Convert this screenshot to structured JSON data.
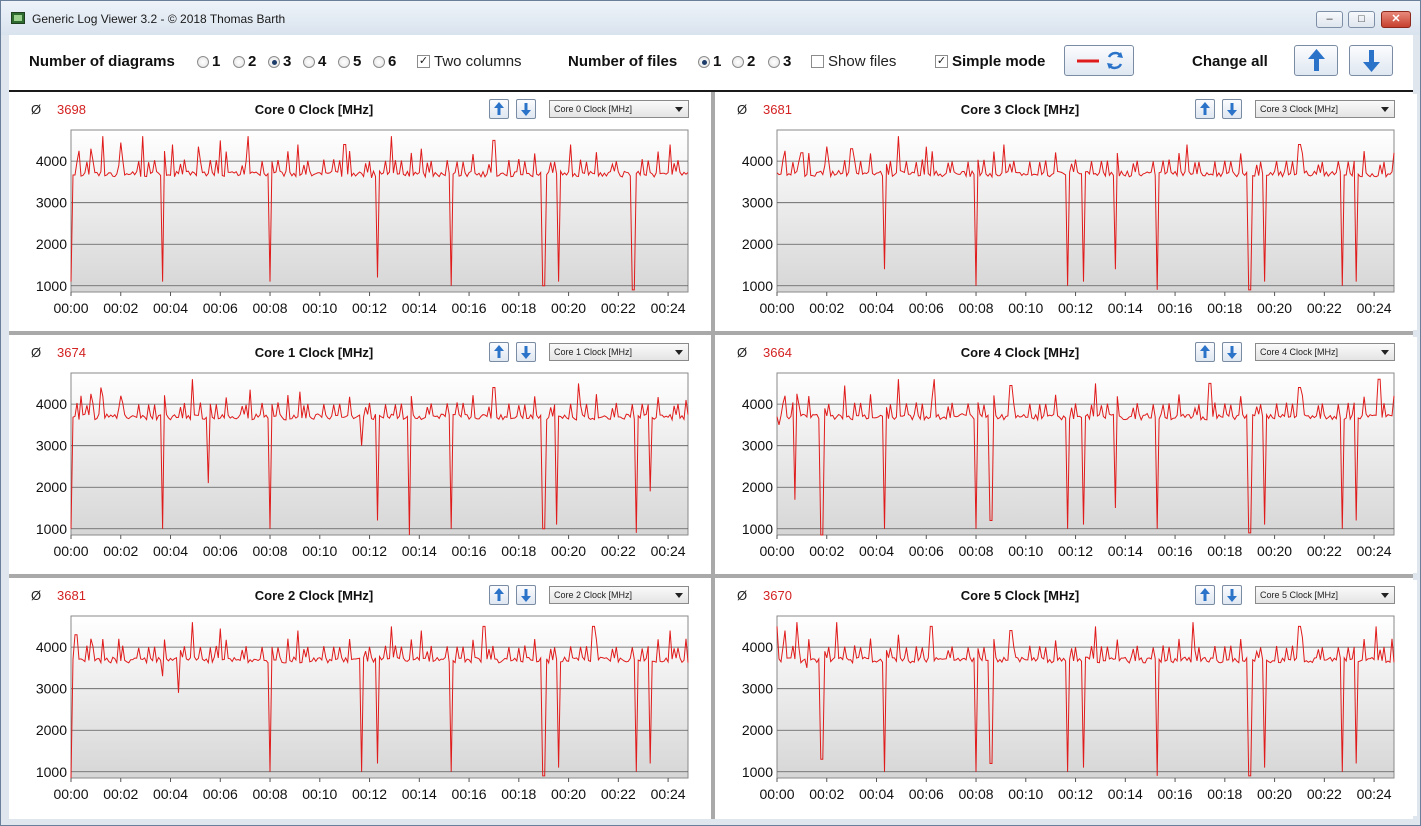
{
  "window": {
    "title": "Generic Log Viewer 3.2 - © 2018 Thomas Barth"
  },
  "toolbar": {
    "diagrams_label": "Number of diagrams",
    "diagram_options": [
      "1",
      "2",
      "3",
      "4",
      "5",
      "6"
    ],
    "diagrams_selected": "3",
    "two_columns_label": "Two columns",
    "two_columns_checked": true,
    "files_label": "Number of files",
    "file_options": [
      "1",
      "2",
      "3"
    ],
    "files_selected": "1",
    "show_files_label": "Show files",
    "show_files_checked": false,
    "simple_mode_label": "Simple mode",
    "simple_mode_checked": true,
    "change_all_label": "Change all",
    "line_color": "#e01b1b"
  },
  "panels": [
    {
      "avg_symbol": "Ø",
      "avg": "3698",
      "title": "Core 0 Clock [MHz]",
      "select": "Core 0 Clock [MHz]"
    },
    {
      "avg_symbol": "Ø",
      "avg": "3681",
      "title": "Core 3 Clock [MHz]",
      "select": "Core 3 Clock [MHz]"
    },
    {
      "avg_symbol": "Ø",
      "avg": "3674",
      "title": "Core 1 Clock [MHz]",
      "select": "Core 1 Clock [MHz]"
    },
    {
      "avg_symbol": "Ø",
      "avg": "3664",
      "title": "Core 4 Clock [MHz]",
      "select": "Core 4 Clock [MHz]"
    },
    {
      "avg_symbol": "Ø",
      "avg": "3681",
      "title": "Core 2 Clock [MHz]",
      "select": "Core 2 Clock [MHz]"
    },
    {
      "avg_symbol": "Ø",
      "avg": "3670",
      "title": "Core 5 Clock [MHz]",
      "select": "Core 5 Clock [MHz]"
    }
  ],
  "chart_data": [
    {
      "type": "line",
      "title": "Core 0 Clock [MHz]",
      "x_ticks": [
        "00:00",
        "00:02",
        "00:04",
        "00:06",
        "00:08",
        "00:10",
        "00:12",
        "00:14",
        "00:16",
        "00:18",
        "00:20",
        "00:22",
        "00:24"
      ],
      "y_ticks": [
        1000,
        2000,
        3000,
        4000
      ],
      "ylim": [
        850,
        4750
      ],
      "xlim_minutes": [
        0,
        24.8
      ],
      "baseline": 3690,
      "spikes": [
        [
          0.0,
          1100
        ],
        [
          0.3,
          4250
        ],
        [
          0.8,
          4300
        ],
        [
          1.3,
          4600
        ],
        [
          2.0,
          4450
        ],
        [
          2.9,
          4600
        ],
        [
          3.7,
          1100
        ],
        [
          4.1,
          4400
        ],
        [
          5.1,
          4350
        ],
        [
          6.0,
          4500
        ],
        [
          7.1,
          4600
        ],
        [
          8.0,
          1100
        ],
        [
          9.1,
          4400
        ],
        [
          11.0,
          4400
        ],
        [
          12.1,
          3600
        ],
        [
          12.3,
          1200
        ],
        [
          12.9,
          4600
        ],
        [
          14.1,
          4300
        ],
        [
          15.3,
          1000
        ],
        [
          17.0,
          4500
        ],
        [
          19.0,
          1000
        ],
        [
          19.6,
          1100
        ],
        [
          20.1,
          4400
        ],
        [
          22.6,
          900
        ],
        [
          24.1,
          4400
        ]
      ],
      "color": "#e01b1b"
    },
    {
      "type": "line",
      "title": "Core 3 Clock [MHz]",
      "x_ticks": [
        "00:00",
        "00:02",
        "00:04",
        "00:06",
        "00:08",
        "00:10",
        "00:12",
        "00:14",
        "00:16",
        "00:18",
        "00:20",
        "00:22",
        "00:24"
      ],
      "y_ticks": [
        1000,
        2000,
        3000,
        4000
      ],
      "ylim": [
        850,
        4750
      ],
      "xlim_minutes": [
        0,
        24.8
      ],
      "baseline": 3690,
      "spikes": [
        [
          0.3,
          4250
        ],
        [
          1.0,
          4200
        ],
        [
          2.0,
          4350
        ],
        [
          3.0,
          4300
        ],
        [
          4.3,
          1400
        ],
        [
          4.9,
          4600
        ],
        [
          6.0,
          4350
        ],
        [
          8.0,
          1000
        ],
        [
          9.1,
          4400
        ],
        [
          11.7,
          1000
        ],
        [
          12.3,
          1100
        ],
        [
          13.6,
          1400
        ],
        [
          15.3,
          900
        ],
        [
          16.5,
          4400
        ],
        [
          19.0,
          900
        ],
        [
          19.6,
          1100
        ],
        [
          21.0,
          4400
        ],
        [
          22.7,
          1000
        ],
        [
          23.3,
          1100
        ],
        [
          24.8,
          4200
        ]
      ],
      "color": "#e01b1b"
    },
    {
      "type": "line",
      "title": "Core 1 Clock [MHz]",
      "x_ticks": [
        "00:00",
        "00:02",
        "00:04",
        "00:06",
        "00:08",
        "00:10",
        "00:12",
        "00:14",
        "00:16",
        "00:18",
        "00:20",
        "00:22",
        "00:24"
      ],
      "y_ticks": [
        1000,
        2000,
        3000,
        4000
      ],
      "ylim": [
        850,
        4750
      ],
      "xlim_minutes": [
        0,
        24.8
      ],
      "baseline": 3690,
      "spikes": [
        [
          0.0,
          1000
        ],
        [
          0.4,
          4200
        ],
        [
          0.8,
          4250
        ],
        [
          1.2,
          4400
        ],
        [
          2.0,
          4200
        ],
        [
          3.7,
          1000
        ],
        [
          4.9,
          4600
        ],
        [
          5.5,
          2100
        ],
        [
          7.2,
          4350
        ],
        [
          8.0,
          1000
        ],
        [
          9.2,
          4300
        ],
        [
          11.7,
          3000
        ],
        [
          12.3,
          1200
        ],
        [
          13.6,
          800
        ],
        [
          15.3,
          1000
        ],
        [
          17.0,
          4400
        ],
        [
          19.0,
          1000
        ],
        [
          19.5,
          1100
        ],
        [
          20.4,
          4500
        ],
        [
          22.7,
          900
        ],
        [
          23.3,
          1900
        ],
        [
          24.7,
          4100
        ]
      ],
      "color": "#e01b1b"
    },
    {
      "type": "line",
      "title": "Core 4 Clock [MHz]",
      "x_ticks": [
        "00:00",
        "00:02",
        "00:04",
        "00:06",
        "00:08",
        "00:10",
        "00:12",
        "00:14",
        "00:16",
        "00:18",
        "00:20",
        "00:22",
        "00:24"
      ],
      "y_ticks": [
        1000,
        2000,
        3000,
        4000
      ],
      "ylim": [
        850,
        4750
      ],
      "xlim_minutes": [
        0,
        24.8
      ],
      "baseline": 3690,
      "spikes": [
        [
          0.1,
          3500
        ],
        [
          0.3,
          4200
        ],
        [
          0.8,
          4250
        ],
        [
          0.7,
          1700
        ],
        [
          1.8,
          800
        ],
        [
          2.7,
          4450
        ],
        [
          4.3,
          1000
        ],
        [
          4.9,
          4600
        ],
        [
          6.3,
          4600
        ],
        [
          8.0,
          1000
        ],
        [
          8.6,
          1200
        ],
        [
          9.4,
          4450
        ],
        [
          11.7,
          1000
        ],
        [
          12.3,
          1100
        ],
        [
          12.8,
          4500
        ],
        [
          13.6,
          1500
        ],
        [
          15.3,
          1000
        ],
        [
          17.4,
          4500
        ],
        [
          19.0,
          900
        ],
        [
          19.6,
          1100
        ],
        [
          21.0,
          4400
        ],
        [
          22.7,
          1000
        ],
        [
          23.3,
          1200
        ],
        [
          24.2,
          4600
        ],
        [
          24.8,
          4200
        ]
      ],
      "color": "#e01b1b"
    },
    {
      "type": "line",
      "title": "Core 2 Clock [MHz]",
      "x_ticks": [
        "00:00",
        "00:02",
        "00:04",
        "00:06",
        "00:08",
        "00:10",
        "00:12",
        "00:14",
        "00:16",
        "00:18",
        "00:20",
        "00:22",
        "00:24"
      ],
      "y_ticks": [
        1000,
        2000,
        3000,
        4000
      ],
      "ylim": [
        850,
        4750
      ],
      "xlim_minutes": [
        0,
        24.8
      ],
      "baseline": 3690,
      "spikes": [
        [
          0.0,
          800
        ],
        [
          0.2,
          4300
        ],
        [
          0.8,
          4200
        ],
        [
          1.9,
          4200
        ],
        [
          3.7,
          3300
        ],
        [
          4.3,
          2900
        ],
        [
          4.9,
          4600
        ],
        [
          6.0,
          4450
        ],
        [
          8.0,
          1000
        ],
        [
          9.1,
          4400
        ],
        [
          11.7,
          1000
        ],
        [
          12.3,
          1200
        ],
        [
          12.9,
          4500
        ],
        [
          14.1,
          4400
        ],
        [
          15.3,
          1000
        ],
        [
          16.6,
          4500
        ],
        [
          19.0,
          900
        ],
        [
          19.6,
          1100
        ],
        [
          21.0,
          4500
        ],
        [
          22.7,
          1000
        ],
        [
          23.3,
          1200
        ],
        [
          24.1,
          4400
        ],
        [
          24.7,
          4200
        ]
      ],
      "color": "#e01b1b"
    },
    {
      "type": "line",
      "title": "Core 5 Clock [MHz]",
      "x_ticks": [
        "00:00",
        "00:02",
        "00:04",
        "00:06",
        "00:08",
        "00:10",
        "00:12",
        "00:14",
        "00:16",
        "00:18",
        "00:20",
        "00:22",
        "00:24"
      ],
      "y_ticks": [
        1000,
        2000,
        3000,
        4000
      ],
      "ylim": [
        850,
        4750
      ],
      "xlim_minutes": [
        0,
        24.8
      ],
      "baseline": 3690,
      "spikes": [
        [
          0.0,
          4500
        ],
        [
          0.3,
          4400
        ],
        [
          0.8,
          4600
        ],
        [
          1.2,
          3500
        ],
        [
          1.8,
          1300
        ],
        [
          2.4,
          4600
        ],
        [
          4.3,
          1000
        ],
        [
          4.9,
          4300
        ],
        [
          6.2,
          4500
        ],
        [
          8.0,
          1000
        ],
        [
          8.6,
          1200
        ],
        [
          9.4,
          4400
        ],
        [
          11.7,
          1000
        ],
        [
          12.3,
          1100
        ],
        [
          12.8,
          4500
        ],
        [
          15.3,
          900
        ],
        [
          16.7,
          4600
        ],
        [
          19.0,
          900
        ],
        [
          19.6,
          1100
        ],
        [
          21.0,
          4500
        ],
        [
          22.7,
          1000
        ],
        [
          23.3,
          1200
        ],
        [
          24.1,
          4500
        ],
        [
          24.7,
          4200
        ]
      ],
      "color": "#e01b1b"
    }
  ]
}
